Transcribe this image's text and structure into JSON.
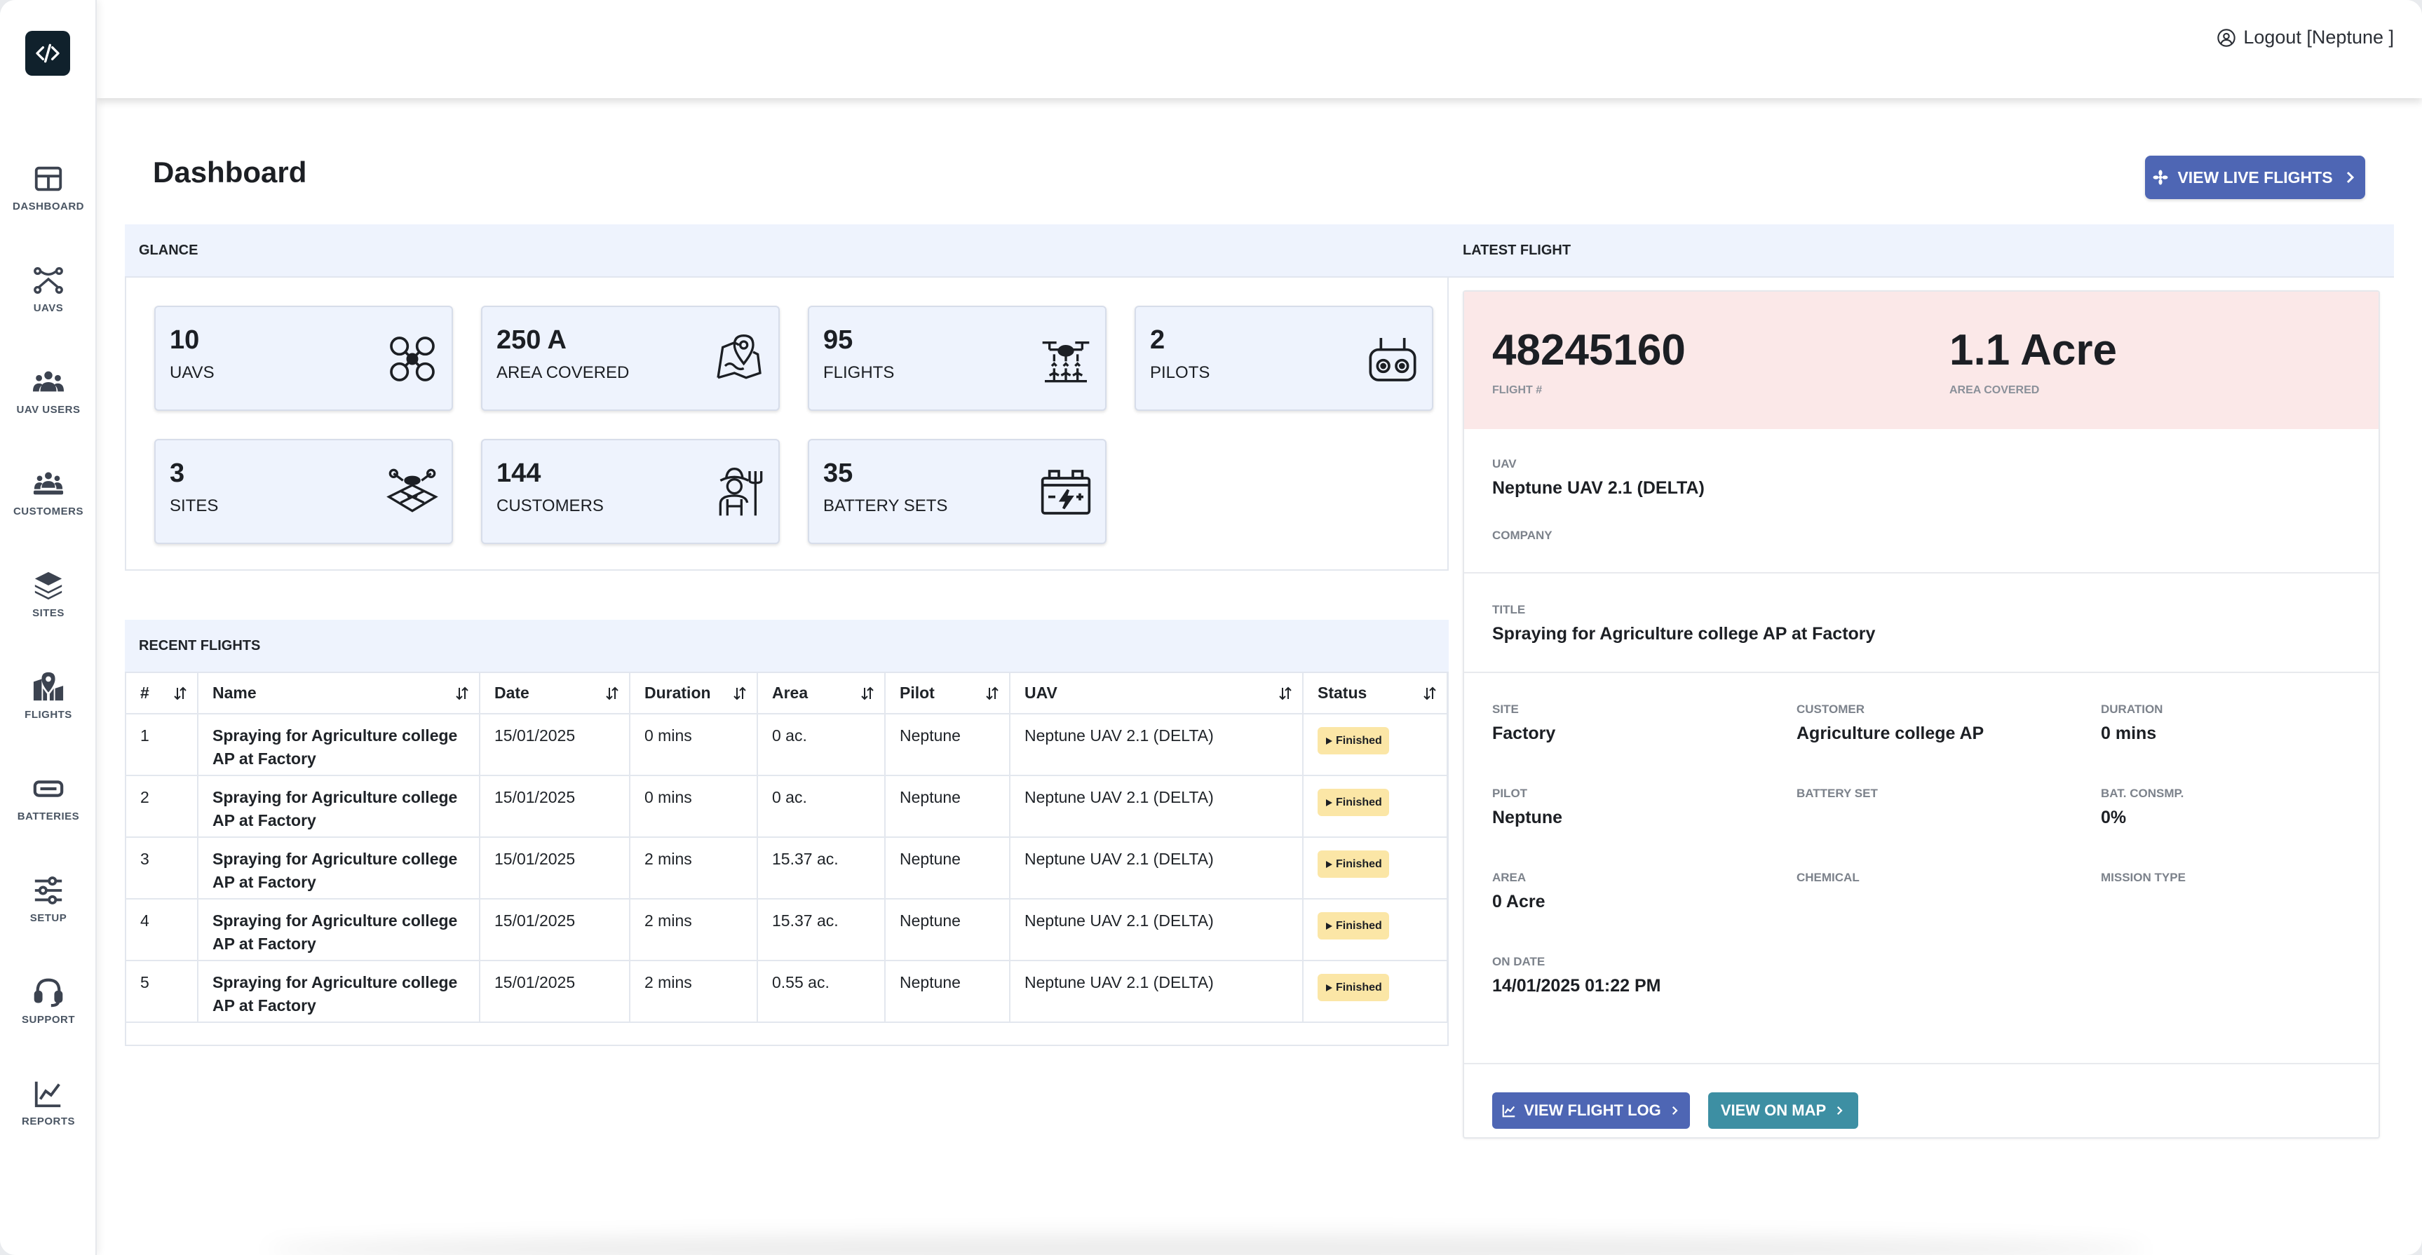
{
  "header": {
    "logout_label": "Logout [Neptune ]"
  },
  "sidebar": {
    "items": [
      {
        "label": "DASHBOARD"
      },
      {
        "label": "UAVS"
      },
      {
        "label": "UAV USERS"
      },
      {
        "label": "CUSTOMERS"
      },
      {
        "label": "SITES"
      },
      {
        "label": "FLIGHTS"
      },
      {
        "label": "BATTERIES"
      },
      {
        "label": "SETUP"
      },
      {
        "label": "SUPPORT"
      },
      {
        "label": "REPORTS"
      }
    ]
  },
  "main": {
    "title": "Dashboard",
    "live_button": "VIEW LIVE FLIGHTS"
  },
  "glance": {
    "heading": "GLANCE",
    "cards": [
      {
        "value": "10",
        "label": "UAVS",
        "icon": "drone-icon"
      },
      {
        "value": "250 A",
        "label": "AREA COVERED",
        "icon": "map-pin-icon"
      },
      {
        "value": "95",
        "label": "FLIGHTS",
        "icon": "spray-drone-icon"
      },
      {
        "value": "2",
        "label": "PILOTS",
        "icon": "remote-controller-icon"
      },
      {
        "value": "3",
        "label": "SITES",
        "icon": "field-drone-icon"
      },
      {
        "value": "144",
        "label": "CUSTOMERS",
        "icon": "farmer-icon"
      },
      {
        "value": "35",
        "label": "BATTERY SETS",
        "icon": "battery-icon"
      }
    ]
  },
  "recent": {
    "heading": "RECENT FLIGHTS",
    "columns": [
      "#",
      "Name",
      "Date",
      "Duration",
      "Area",
      "Pilot",
      "UAV",
      "Status"
    ],
    "rows": [
      {
        "num": "1",
        "name": "Spraying for Agriculture college AP at Factory",
        "date": "15/01/2025",
        "duration": "0 mins",
        "area": "0 ac.",
        "pilot": "Neptune",
        "uav": "Neptune UAV 2.1 (DELTA)",
        "status": "Finished"
      },
      {
        "num": "2",
        "name": "Spraying for Agriculture college AP at Factory",
        "date": "15/01/2025",
        "duration": "0 mins",
        "area": "0 ac.",
        "pilot": "Neptune",
        "uav": "Neptune UAV 2.1 (DELTA)",
        "status": "Finished"
      },
      {
        "num": "3",
        "name": "Spraying for Agriculture college AP at Factory",
        "date": "15/01/2025",
        "duration": "2 mins",
        "area": "15.37 ac.",
        "pilot": "Neptune",
        "uav": "Neptune UAV 2.1 (DELTA)",
        "status": "Finished"
      },
      {
        "num": "4",
        "name": "Spraying for Agriculture college AP at Factory",
        "date": "15/01/2025",
        "duration": "2 mins",
        "area": "15.37 ac.",
        "pilot": "Neptune",
        "uav": "Neptune UAV 2.1 (DELTA)",
        "status": "Finished"
      },
      {
        "num": "5",
        "name": "Spraying for Agriculture college AP at Factory",
        "date": "15/01/2025",
        "duration": "2 mins",
        "area": "0.55 ac.",
        "pilot": "Neptune",
        "uav": "Neptune UAV 2.1 (DELTA)",
        "status": "Finished"
      }
    ]
  },
  "latest": {
    "heading": "LATEST FLIGHT",
    "flight_number": "48245160",
    "flight_number_label": "FLIGHT #",
    "area_value": "1.1 Acre",
    "area_label": "AREA COVERED",
    "uav_label": "UAV",
    "uav_value": "Neptune UAV 2.1 (DELTA)",
    "company_label": "COMPANY",
    "title_label": "TITLE",
    "title_value": "Spraying for Agriculture college AP at Factory",
    "site_label": "SITE",
    "site_value": "Factory",
    "customer_label": "CUSTOMER",
    "customer_value": "Agriculture college AP",
    "duration_label": "DURATION",
    "duration_value": "0 mins",
    "pilot_label": "PILOT",
    "pilot_value": "Neptune",
    "battery_label": "BATTERY SET",
    "bat_consmp_label": "BAT. CONSMP.",
    "bat_consmp_value": "0%",
    "area2_label": "AREA",
    "area2_value": "0 Acre",
    "chemical_label": "CHEMICAL",
    "mission_label": "MISSION TYPE",
    "on_date_label": "ON DATE",
    "on_date_value": "14/01/2025 01:22 PM",
    "log_button": "VIEW FLIGHT LOG",
    "map_button": "VIEW ON MAP"
  },
  "colors": {
    "primary": "#4e66b4",
    "teal": "#3d8fa3",
    "panel_bg": "#eef3fd",
    "hero_bg": "#fbe8e8",
    "badge_bg": "#fbe6a6"
  }
}
